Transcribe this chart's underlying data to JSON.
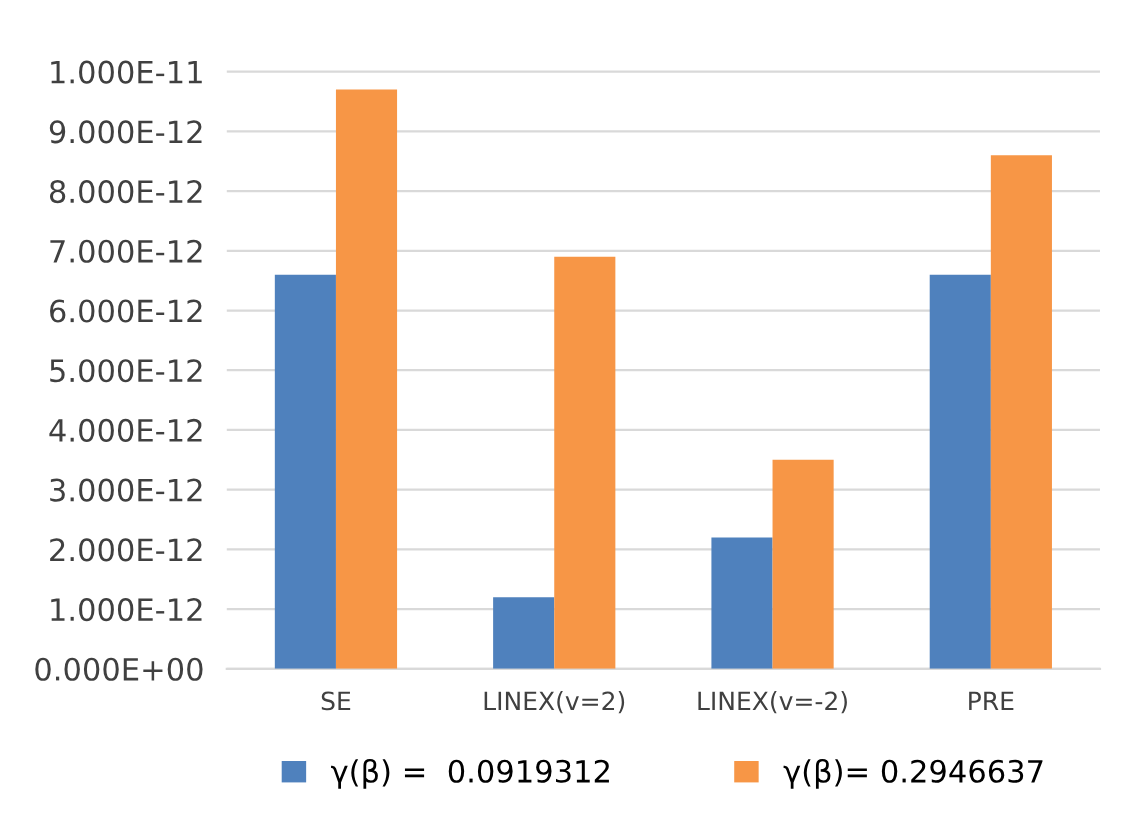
{
  "chart_data": {
    "type": "bar",
    "categories": [
      "SE",
      "LINEX(v=2)",
      "LINEX(v=-2)",
      "PRE"
    ],
    "series": [
      {
        "name": "γ(β) =  0.0919312",
        "color": "#4f81bd",
        "values": [
          6.6e-12,
          1.2e-12,
          2.2e-12,
          6.6e-12
        ]
      },
      {
        "name": "γ(β)= 0.2946637",
        "color": "#f79646",
        "values": [
          9.7e-12,
          6.9e-12,
          3.5e-12,
          8.6e-12
        ]
      }
    ],
    "ylim": [
      0,
      1.05e-11
    ],
    "yticks": [
      {
        "value": 0,
        "label": "0.000E+00"
      },
      {
        "value": 1e-12,
        "label": "1.000E-12"
      },
      {
        "value": 2e-12,
        "label": "2.000E-12"
      },
      {
        "value": 3e-12,
        "label": "3.000E-12"
      },
      {
        "value": 4e-12,
        "label": "4.000E-12"
      },
      {
        "value": 5e-12,
        "label": "5.000E-12"
      },
      {
        "value": 6e-12,
        "label": "6.000E-12"
      },
      {
        "value": 7e-12,
        "label": "7.000E-12"
      },
      {
        "value": 8e-12,
        "label": "8.000E-12"
      },
      {
        "value": 9e-12,
        "label": "9.000E-12"
      },
      {
        "value": 1e-11,
        "label": "1.000E-11"
      }
    ],
    "grid": "y",
    "legend": "bottom"
  }
}
